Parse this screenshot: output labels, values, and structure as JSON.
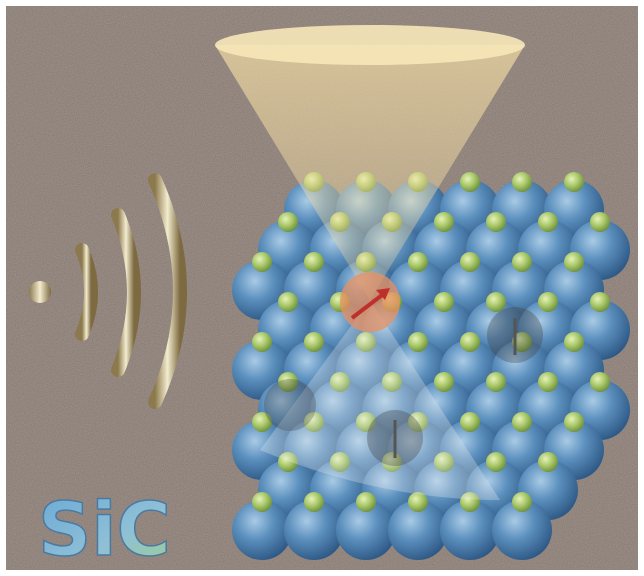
{
  "label": "SiC"
}
